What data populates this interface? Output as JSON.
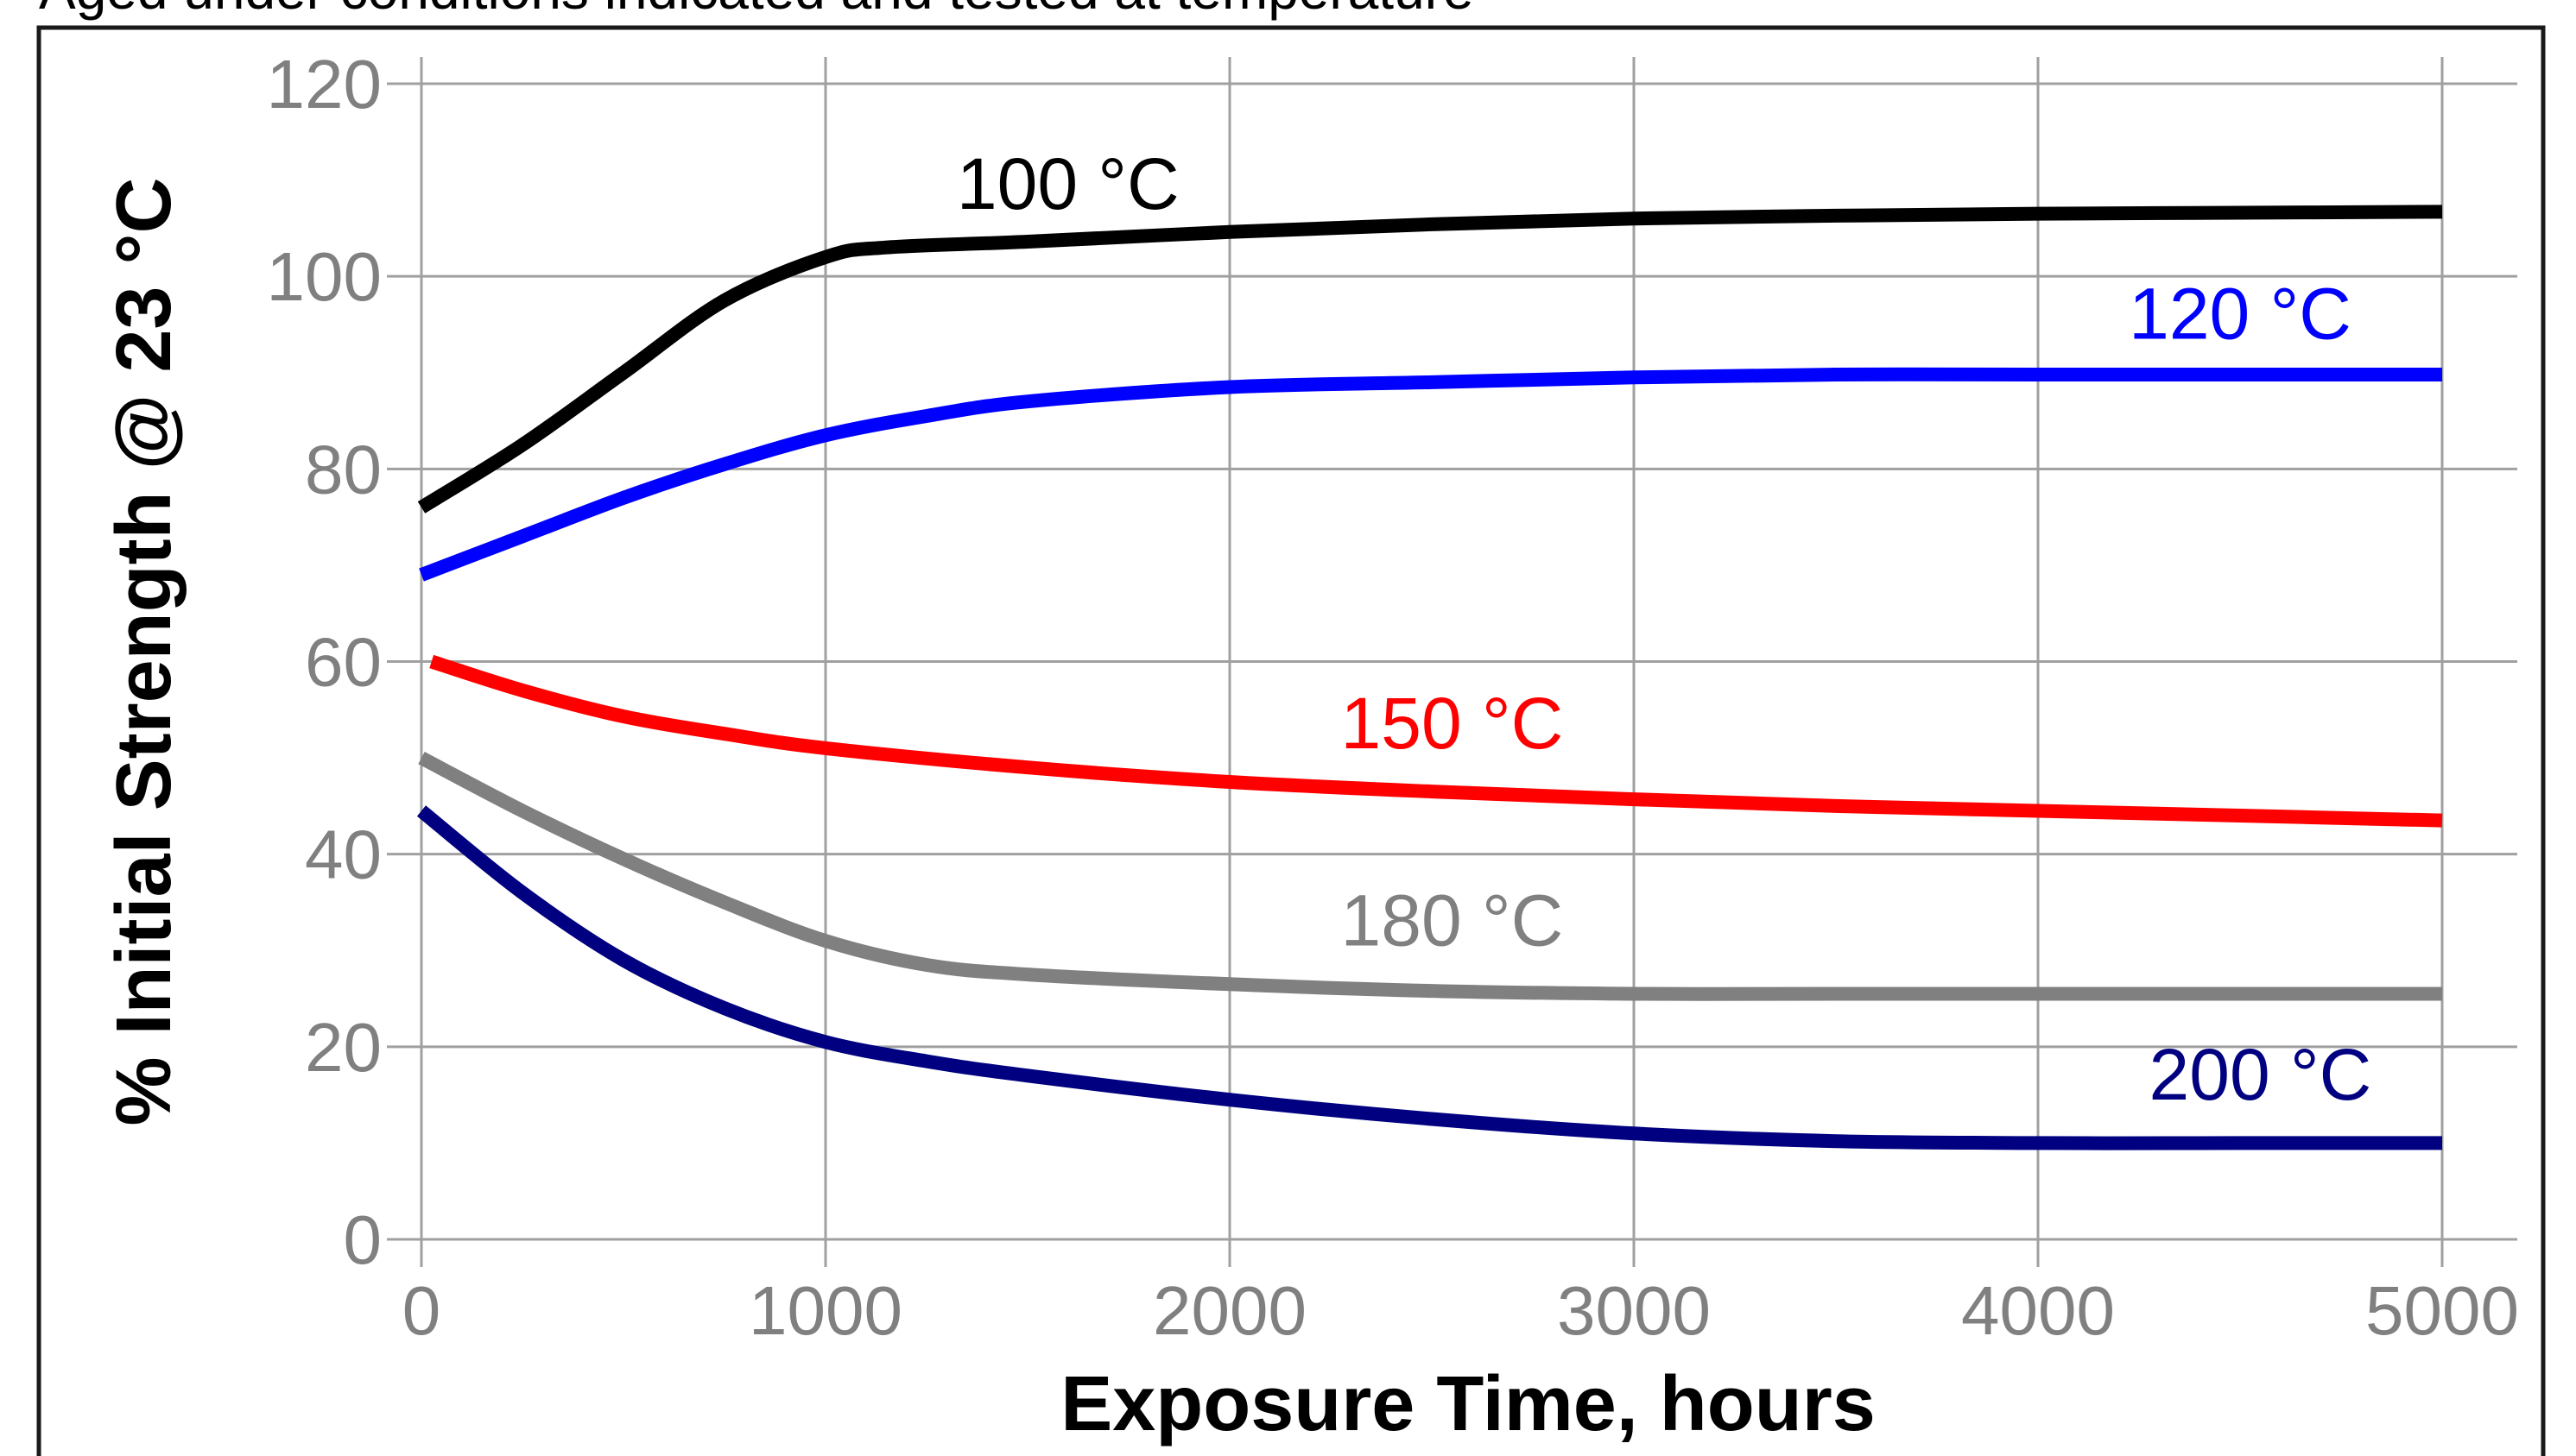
{
  "chart_data": {
    "type": "line",
    "title": "Aged under conditions indicated and tested at temperature",
    "xlabel": "Exposure Time, hours",
    "ylabel": "% Initial Strength @ 23 °C",
    "xlim": [
      0,
      5000
    ],
    "ylim": [
      0,
      120
    ],
    "x_ticks": [
      "0",
      "1000",
      "2000",
      "3000",
      "4000",
      "5000"
    ],
    "y_ticks": [
      "0",
      "20",
      "40",
      "60",
      "80",
      "100",
      "120"
    ],
    "grid": true,
    "legend": "none (series labelled directly on lines)",
    "series": [
      {
        "name": "100 °C",
        "color": "#000000",
        "x": [
          0,
          250,
          500,
          750,
          1000,
          1150,
          1500,
          2000,
          2500,
          3000,
          3500,
          4000,
          4500,
          5000
        ],
        "y": [
          76,
          82.5,
          90,
          97.5,
          102,
          103,
          103.6,
          104.6,
          105.4,
          106,
          106.3,
          106.5,
          106.6,
          106.7
        ]
      },
      {
        "name": "120 °C",
        "color": "#0000ff",
        "x": [
          0,
          250,
          500,
          750,
          1000,
          1250,
          1500,
          2000,
          2500,
          3000,
          3500,
          4000,
          4500,
          5000
        ],
        "y": [
          69,
          73,
          77,
          80.5,
          83.5,
          85.5,
          87,
          88.5,
          89,
          89.5,
          89.8,
          89.8,
          89.8,
          89.8
        ]
      },
      {
        "name": "150 °C",
        "color": "#ff0000",
        "x": [
          25,
          250,
          500,
          750,
          1000,
          1500,
          2000,
          2500,
          3000,
          3500,
          4000,
          4500,
          5000
        ],
        "y": [
          60,
          57,
          54.3,
          52.5,
          51,
          49,
          47.5,
          46.5,
          45.7,
          45,
          44.5,
          44,
          43.5
        ]
      },
      {
        "name": "180 °C",
        "color": "#808080",
        "x": [
          0,
          250,
          500,
          750,
          1000,
          1250,
          1500,
          2000,
          2500,
          3000,
          3500,
          4000,
          4500,
          5000
        ],
        "y": [
          50,
          44.5,
          39.5,
          35,
          31,
          28.5,
          27.5,
          26.5,
          25.8,
          25.5,
          25.5,
          25.5,
          25.5,
          25.5
        ]
      },
      {
        "name": "200 °C",
        "color": "#000080",
        "x": [
          0,
          250,
          500,
          750,
          1000,
          1250,
          1500,
          2000,
          2500,
          3000,
          3500,
          4000,
          4500,
          5000
        ],
        "y": [
          44.5,
          36,
          29,
          24,
          20.5,
          18.5,
          17,
          14.5,
          12.5,
          11,
          10.2,
          10,
          10,
          10
        ]
      }
    ],
    "annotations": [
      {
        "text": "100 °C",
        "x": 1600,
        "y": 107,
        "color": "#000000"
      },
      {
        "text": "120 °C",
        "x": 4500,
        "y": 93.5,
        "color": "#0000ff"
      },
      {
        "text": "150 °C",
        "x": 2550,
        "y": 51,
        "color": "#ff0000"
      },
      {
        "text": "180 °C",
        "x": 2550,
        "y": 30.5,
        "color": "#808080"
      },
      {
        "text": "200 °C",
        "x": 4550,
        "y": 14.5,
        "color": "#000080"
      }
    ]
  }
}
